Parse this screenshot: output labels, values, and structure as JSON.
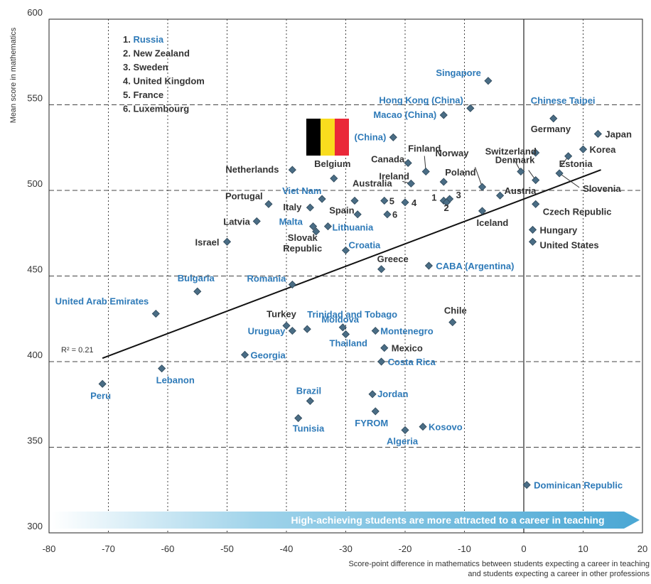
{
  "chart_data": {
    "type": "scatter",
    "xlabel": "Score-point difference in mathematics between students expecting a career in teaching and students expecting a career in other professions",
    "ylabel": "Mean score in mathematics",
    "xlim": [
      -80,
      20
    ],
    "ylim": [
      300,
      600
    ],
    "xticks": [
      -80,
      -70,
      -60,
      -50,
      -40,
      -30,
      -20,
      -10,
      0,
      10,
      20
    ],
    "yticks": [
      300,
      350,
      400,
      450,
      500,
      550,
      600
    ],
    "grid": true,
    "legend_placement": "top-left",
    "legend_items": [
      {
        "label": "1. ",
        "name": "Russia",
        "color": "blue"
      },
      {
        "label": "2. New Zealand",
        "name": "",
        "color": "black"
      },
      {
        "label": "3. Sweden",
        "name": "",
        "color": "black"
      },
      {
        "label": "4. United Kingdom",
        "name": "",
        "color": "black"
      },
      {
        "label": "5. France",
        "name": "",
        "color": "black"
      },
      {
        "label": "6. Luxembourg",
        "name": "",
        "color": "black"
      }
    ],
    "banner_text": "High-achieving students are more attracted to a career in teaching",
    "r2_label": "R² = 0.21",
    "trendline": {
      "x1": -71,
      "y1": 402,
      "x2": 13,
      "y2": 512
    },
    "colors": {
      "marker": "#4a6d85",
      "blue_label": "#2e7ab8",
      "black_label": "#333333",
      "banner": "#5fb3d8",
      "grid": "#444444"
    },
    "points": [
      {
        "label": "Singapore",
        "x": -6,
        "y": 564,
        "color": "blue"
      },
      {
        "label": "Hong Kong (China)",
        "x": -9,
        "y": 548,
        "color": "blue"
      },
      {
        "label": "Chinese Taipei",
        "x": 5,
        "y": 542,
        "color": "blue"
      },
      {
        "label": "Macao (China)",
        "x": -13.5,
        "y": 544,
        "color": "blue"
      },
      {
        "label": "(China)",
        "x": -22,
        "y": 531,
        "color": "blue"
      },
      {
        "label": "Japan",
        "x": 12.5,
        "y": 533,
        "color": "black"
      },
      {
        "label": "Korea",
        "x": 10,
        "y": 524,
        "color": "black"
      },
      {
        "label": "Estonia",
        "x": 7.5,
        "y": 520,
        "color": "black"
      },
      {
        "label": "Germany",
        "x": 2,
        "y": 522,
        "color": "black"
      },
      {
        "label": "Switzerland",
        "x": -0.5,
        "y": 511,
        "color": "black"
      },
      {
        "label": "Denmark",
        "x": 2,
        "y": 506,
        "color": "black"
      },
      {
        "label": "Slovenia",
        "x": 6,
        "y": 510,
        "color": "black"
      },
      {
        "label": "Finland",
        "x": -16.5,
        "y": 511,
        "color": "black"
      },
      {
        "label": "Norway",
        "x": -7,
        "y": 502,
        "color": "black"
      },
      {
        "label": "Canada",
        "x": -19.5,
        "y": 516,
        "color": "black"
      },
      {
        "label": "Poland",
        "x": -13.5,
        "y": 505,
        "color": "black"
      },
      {
        "label": "Ireland",
        "x": -19,
        "y": 504,
        "color": "black"
      },
      {
        "label": "Austria",
        "x": -4,
        "y": 497,
        "color": "black"
      },
      {
        "label": "Netherlands",
        "x": -39,
        "y": 512,
        "color": "black"
      },
      {
        "label": "Belgium",
        "x": -32,
        "y": 507,
        "color": "black"
      },
      {
        "label": "Viet Nam",
        "x": -34,
        "y": 495,
        "color": "blue"
      },
      {
        "label": "Australia",
        "x": -28.5,
        "y": 494,
        "color": "black"
      },
      {
        "label": "Portugal",
        "x": -43,
        "y": 492,
        "color": "black"
      },
      {
        "label": "Italy",
        "x": -36,
        "y": 490,
        "color": "black"
      },
      {
        "label": "Spain",
        "x": -28,
        "y": 486,
        "color": "black"
      },
      {
        "label": "5",
        "x": -23.5,
        "y": 494,
        "color": "black"
      },
      {
        "label": "6",
        "x": -23,
        "y": 486,
        "color": "black"
      },
      {
        "label": "4",
        "x": -20,
        "y": 493,
        "color": "black"
      },
      {
        "label": "1",
        "x": -13.5,
        "y": 494,
        "color": "black"
      },
      {
        "label": "3",
        "x": -12.5,
        "y": 495,
        "color": "black"
      },
      {
        "label": "2",
        "x": -13,
        "y": 493,
        "color": "black"
      },
      {
        "label": "Czech Republic",
        "x": 2,
        "y": 492,
        "color": "black"
      },
      {
        "label": "Iceland",
        "x": -7,
        "y": 488,
        "color": "black"
      },
      {
        "label": "Latvia",
        "x": -45,
        "y": 482,
        "color": "black"
      },
      {
        "label": "Malta",
        "x": -35.5,
        "y": 479,
        "color": "blue"
      },
      {
        "label": "Lithuania",
        "x": -33,
        "y": 479,
        "color": "blue"
      },
      {
        "label": "Slovak Republic",
        "x": -35,
        "y": 476,
        "color": "black"
      },
      {
        "label": "Hungary",
        "x": 1.5,
        "y": 477,
        "color": "black"
      },
      {
        "label": "United States",
        "x": 1.5,
        "y": 470,
        "color": "black"
      },
      {
        "label": "Israel",
        "x": -50,
        "y": 470,
        "color": "black"
      },
      {
        "label": "Croatia",
        "x": -30,
        "y": 465,
        "color": "blue"
      },
      {
        "label": "Greece",
        "x": -24,
        "y": 454,
        "color": "black"
      },
      {
        "label": "CABA (Argentina)",
        "x": -16,
        "y": 456,
        "color": "blue"
      },
      {
        "label": "Romania",
        "x": -39,
        "y": 445,
        "color": "blue"
      },
      {
        "label": "Bulgaria",
        "x": -55,
        "y": 441,
        "color": "blue"
      },
      {
        "label": "United Arab Emirates",
        "x": -62,
        "y": 428,
        "color": "blue"
      },
      {
        "label": "Trinidad and Tobago",
        "x": -36.5,
        "y": 419,
        "color": "blue"
      },
      {
        "label": "Chile",
        "x": -12,
        "y": 423,
        "color": "black"
      },
      {
        "label": "Turkey",
        "x": -40,
        "y": 421,
        "color": "black"
      },
      {
        "label": "Uruguay",
        "x": -39,
        "y": 418,
        "color": "blue"
      },
      {
        "label": "Moldova",
        "x": -30.5,
        "y": 420,
        "color": "blue"
      },
      {
        "label": "Montenegro",
        "x": -25,
        "y": 418,
        "color": "blue"
      },
      {
        "label": "Thailand",
        "x": -30,
        "y": 416,
        "color": "blue"
      },
      {
        "label": "Mexico",
        "x": -23.5,
        "y": 408,
        "color": "black"
      },
      {
        "label": "Georgia",
        "x": -47,
        "y": 404,
        "color": "blue"
      },
      {
        "label": "Costa Rica",
        "x": -24,
        "y": 400,
        "color": "blue"
      },
      {
        "label": "Lebanon",
        "x": -61,
        "y": 396,
        "color": "blue"
      },
      {
        "label": "Peru",
        "x": -71,
        "y": 387,
        "color": "blue"
      },
      {
        "label": "Brazil",
        "x": -36,
        "y": 377,
        "color": "blue"
      },
      {
        "label": "Jordan",
        "x": -25.5,
        "y": 381,
        "color": "blue"
      },
      {
        "label": "FYROM",
        "x": -25,
        "y": 371,
        "color": "blue"
      },
      {
        "label": "Tunisia",
        "x": -38,
        "y": 367,
        "color": "blue"
      },
      {
        "label": "Kosovo",
        "x": -17,
        "y": 362,
        "color": "blue"
      },
      {
        "label": "Algeria",
        "x": -20,
        "y": 360,
        "color": "blue"
      },
      {
        "label": "Dominican Republic",
        "x": 0.5,
        "y": 328,
        "color": "blue"
      }
    ]
  }
}
